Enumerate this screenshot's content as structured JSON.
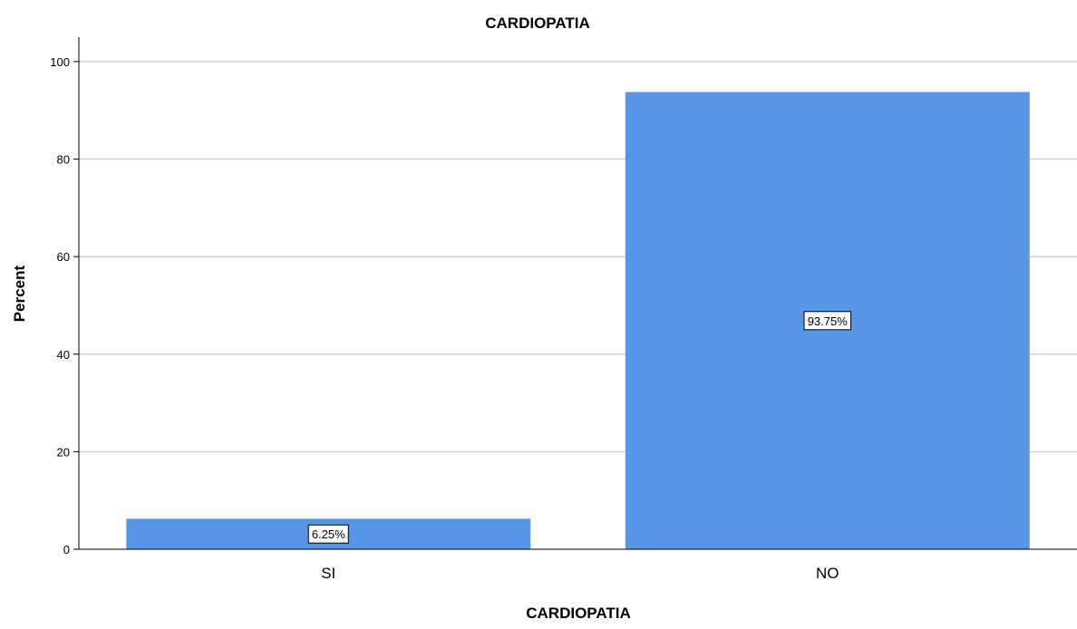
{
  "chart_data": {
    "type": "bar",
    "title": "CARDIOPATIA",
    "xlabel": "CARDIOPATIA",
    "ylabel": "Percent",
    "categories": [
      "SI",
      "NO"
    ],
    "values": [
      6.25,
      93.75
    ],
    "data_labels": [
      "6.25%",
      "93.75%"
    ],
    "ylim": [
      0,
      105
    ],
    "yticks": [
      0,
      20,
      40,
      60,
      80,
      100
    ],
    "grid": true,
    "bar_color": "#5596e6"
  }
}
